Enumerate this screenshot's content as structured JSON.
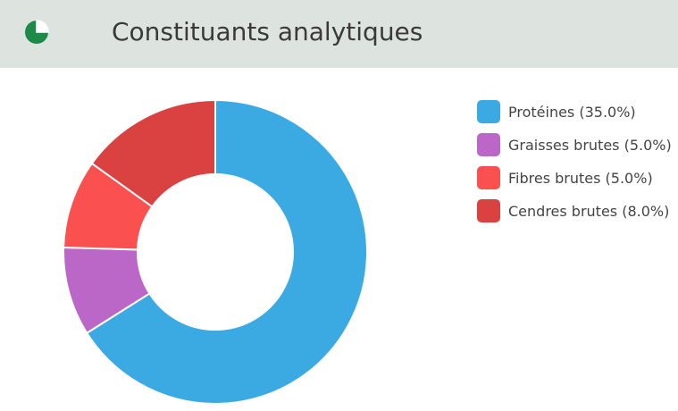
{
  "header": {
    "title": "Constituants analytiques",
    "icon": "pie-chart-icon",
    "icon_color": "#1e8a4a",
    "background": "#dde3df"
  },
  "chart_data": {
    "type": "pie",
    "variant": "donut",
    "title": "",
    "legend_position": "right",
    "slice_border_color": "#ffffff",
    "series": [
      {
        "name": "Protéines",
        "label": "Protéines (35.0%)",
        "value": 35.0,
        "color": "#3ba9e2"
      },
      {
        "name": "Graisses brutes",
        "label": "Graisses brutes (5.0%)",
        "value": 5.0,
        "color": "#bb67c8"
      },
      {
        "name": "Fibres brutes",
        "label": "Fibres brutes (5.0%)",
        "value": 5.0,
        "color": "#fb5050"
      },
      {
        "name": "Cendres brutes",
        "label": "Cendres brutes (8.0%)",
        "value": 8.0,
        "color": "#da4141"
      }
    ]
  }
}
